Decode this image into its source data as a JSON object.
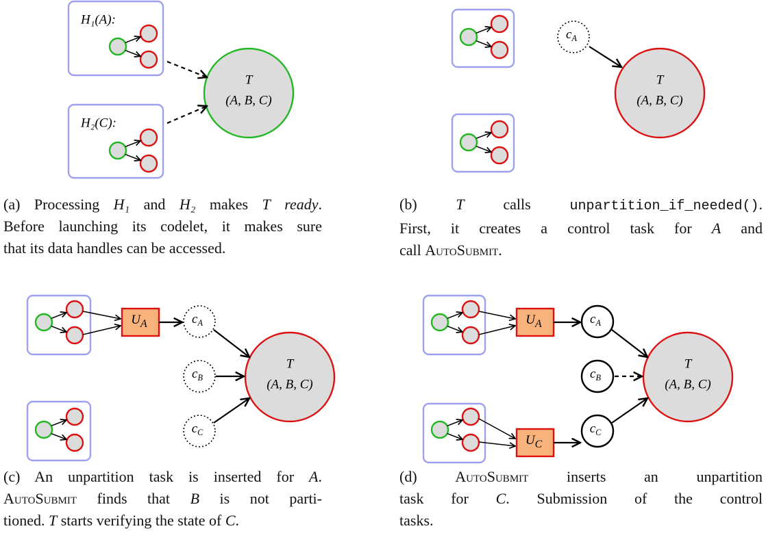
{
  "panels": [
    {
      "hull_labels": [
        "H₁(A):",
        "H₂(C):"
      ],
      "task": "T",
      "task_args": "(A, B, C)",
      "caption": [
        [
          "(a) Processing ",
          {
            "text": "H₁",
            "style": "math"
          },
          " and ",
          {
            "text": "H₂",
            "style": "math"
          },
          " makes ",
          {
            "text": "T",
            "style": "math"
          },
          " ",
          {
            "text": "ready",
            "style": "italic"
          },
          "."
        ],
        [
          "Before launching its codelet, it makes sure"
        ],
        [
          "that its data handles can be accessed."
        ]
      ]
    },
    {
      "task": "T",
      "task_args": "(A, B, C)",
      "controls": [
        {
          "base": "c",
          "sub": "A"
        }
      ],
      "caption": [
        [
          "(b) ",
          {
            "text": "T",
            "style": "math"
          },
          " calls ",
          {
            "text": "unpartition_if_needed()",
            "style": "code"
          },
          "."
        ],
        [
          "First, it creates a control task for ",
          {
            "text": "A",
            "style": "math"
          },
          " and"
        ],
        [
          "call ",
          {
            "text": "AutoSubmit",
            "style": "smallcaps"
          },
          "."
        ]
      ]
    },
    {
      "task": "T",
      "task_args": "(A, B, C)",
      "controls": [
        {
          "base": "c",
          "sub": "A"
        },
        {
          "base": "c",
          "sub": "B"
        },
        {
          "base": "c",
          "sub": "C"
        }
      ],
      "unpartitions": [
        {
          "base": "U",
          "sub": "A"
        }
      ],
      "caption": [
        [
          "(c) An unpartition task is inserted for ",
          {
            "text": "A",
            "style": "math"
          },
          "."
        ],
        [
          {
            "text": "AutoSubmit",
            "style": "smallcaps"
          },
          " finds that ",
          {
            "text": "B",
            "style": "math"
          },
          " is not parti-"
        ],
        [
          "tioned. ",
          {
            "text": "T",
            "style": "math"
          },
          " starts verifying the state of ",
          {
            "text": "C",
            "style": "math"
          },
          "."
        ]
      ]
    },
    {
      "task": "T",
      "task_args": "(A, B, C)",
      "controls": [
        {
          "base": "c",
          "sub": "A"
        },
        {
          "base": "c",
          "sub": "B"
        },
        {
          "base": "c",
          "sub": "C"
        }
      ],
      "unpartitions": [
        {
          "base": "U",
          "sub": "A"
        },
        {
          "base": "U",
          "sub": "C"
        }
      ],
      "caption": [
        [
          "(d) ",
          {
            "text": "AutoSubmit",
            "style": "smallcaps"
          },
          " inserts an unpartition"
        ],
        [
          "task for ",
          {
            "text": "C",
            "style": "math"
          },
          ". Submission of the control"
        ],
        [
          "tasks."
        ]
      ]
    }
  ]
}
